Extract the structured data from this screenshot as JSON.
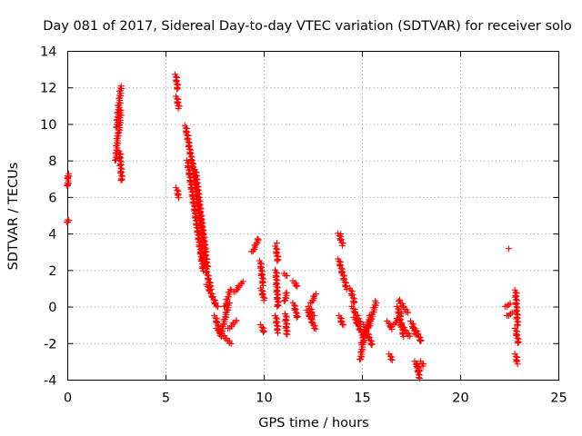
{
  "chart_data": {
    "type": "scatter",
    "title": "Day 081 of 2017, Sidereal Day-to-day VTEC variation (SDTVAR) for receiver solo",
    "xlabel": "GPS time / hours",
    "ylabel": "SDTVAR / TECUs",
    "xlim": [
      0,
      25
    ],
    "ylim": [
      -4,
      14
    ],
    "xticks": [
      0,
      5,
      10,
      15,
      20,
      25
    ],
    "yticks": [
      -4,
      -2,
      0,
      2,
      4,
      6,
      8,
      10,
      12,
      14
    ],
    "grid": true,
    "marker": "+",
    "color": "#ff0000",
    "segments": [
      [
        0.0,
        6.6,
        0.03,
        7.3
      ],
      [
        0.0,
        4.6,
        0.02,
        4.8
      ],
      [
        2.45,
        8.0,
        2.55,
        9.5
      ],
      [
        2.5,
        9.8,
        2.6,
        11.0
      ],
      [
        2.55,
        10.2,
        2.7,
        12.1
      ],
      [
        2.6,
        9.5,
        2.7,
        10.8
      ],
      [
        2.65,
        8.5,
        2.75,
        6.9
      ],
      [
        5.5,
        12.7,
        5.6,
        11.9
      ],
      [
        5.55,
        11.5,
        5.65,
        10.9
      ],
      [
        5.55,
        6.5,
        5.65,
        6.0
      ],
      [
        6.0,
        9.9,
        6.4,
        7.5
      ],
      [
        6.1,
        8.0,
        6.9,
        2.0
      ],
      [
        6.3,
        8.0,
        7.0,
        3.0
      ],
      [
        6.5,
        7.5,
        7.1,
        2.2
      ],
      [
        6.8,
        3.0,
        7.3,
        1.0
      ],
      [
        7.1,
        1.2,
        7.6,
        0.0
      ],
      [
        7.5,
        -0.5,
        7.8,
        -1.6
      ],
      [
        7.6,
        -1.2,
        8.3,
        -2.0
      ],
      [
        7.8,
        -1.5,
        8.2,
        0.2
      ],
      [
        8.0,
        0.0,
        8.3,
        1.0
      ],
      [
        8.2,
        -1.2,
        8.6,
        -0.7
      ],
      [
        8.5,
        0.8,
        8.9,
        1.4
      ],
      [
        9.4,
        3.0,
        9.7,
        3.7
      ],
      [
        9.8,
        2.5,
        9.95,
        1.2
      ],
      [
        9.85,
        1.0,
        10.0,
        0.4
      ],
      [
        9.85,
        -1.0,
        10.0,
        -1.4
      ],
      [
        10.6,
        3.3,
        10.7,
        2.5
      ],
      [
        10.6,
        2.0,
        10.7,
        0.0
      ],
      [
        10.6,
        -0.5,
        10.7,
        -1.4
      ],
      [
        11.05,
        1.8,
        11.12,
        1.7
      ],
      [
        11.05,
        0.3,
        11.15,
        0.8
      ],
      [
        11.1,
        -0.4,
        11.15,
        -1.5
      ],
      [
        11.5,
        1.4,
        11.7,
        1.1
      ],
      [
        11.5,
        0.2,
        11.7,
        -0.6
      ],
      [
        12.2,
        -0.2,
        12.6,
        -1.2
      ],
      [
        12.3,
        0.0,
        12.5,
        -0.5
      ],
      [
        12.4,
        0.2,
        12.6,
        0.7
      ],
      [
        13.8,
        4.0,
        14.0,
        3.4
      ],
      [
        13.8,
        2.6,
        14.2,
        1.0
      ],
      [
        13.85,
        -0.5,
        14.0,
        -1.0
      ],
      [
        14.4,
        1.0,
        14.6,
        0.2
      ],
      [
        14.5,
        0.0,
        14.9,
        -0.9
      ],
      [
        14.6,
        -0.6,
        15.0,
        -1.5
      ],
      [
        14.9,
        -2.9,
        15.1,
        -1.4
      ],
      [
        15.0,
        -2.0,
        15.4,
        -0.5
      ],
      [
        15.3,
        -1.2,
        15.7,
        0.3
      ],
      [
        15.1,
        -1.0,
        15.5,
        -2.1
      ],
      [
        16.3,
        -0.8,
        16.5,
        -1.2
      ],
      [
        16.4,
        -2.6,
        16.5,
        -2.9
      ],
      [
        16.6,
        -1.0,
        17.0,
        -0.3
      ],
      [
        16.8,
        0.0,
        17.1,
        -1.6
      ],
      [
        16.9,
        0.3,
        17.3,
        -0.3
      ],
      [
        17.0,
        -1.0,
        17.4,
        -1.6
      ],
      [
        17.5,
        -0.8,
        17.7,
        -1.5
      ],
      [
        17.7,
        -1.2,
        18.0,
        -1.9
      ],
      [
        17.7,
        -3.0,
        17.9,
        -3.5
      ],
      [
        17.8,
        -3.2,
        17.9,
        -3.9
      ],
      [
        18.0,
        -3.0,
        18.1,
        -3.2
      ],
      [
        22.3,
        0.0,
        22.5,
        0.2
      ],
      [
        22.4,
        -0.5,
        22.6,
        -0.3
      ],
      [
        22.8,
        0.9,
        22.9,
        -1.0
      ],
      [
        22.8,
        -1.2,
        22.95,
        -2.0
      ],
      [
        22.8,
        -2.6,
        22.9,
        -3.1
      ]
    ],
    "points": [
      [
        22.45,
        3.2
      ],
      [
        0.0,
        7.1
      ],
      [
        0.0,
        6.7
      ],
      [
        9.7,
        3.7
      ],
      [
        10.65,
        3.5
      ],
      [
        13.9,
        4.0
      ],
      [
        16.9,
        0.4
      ]
    ]
  }
}
